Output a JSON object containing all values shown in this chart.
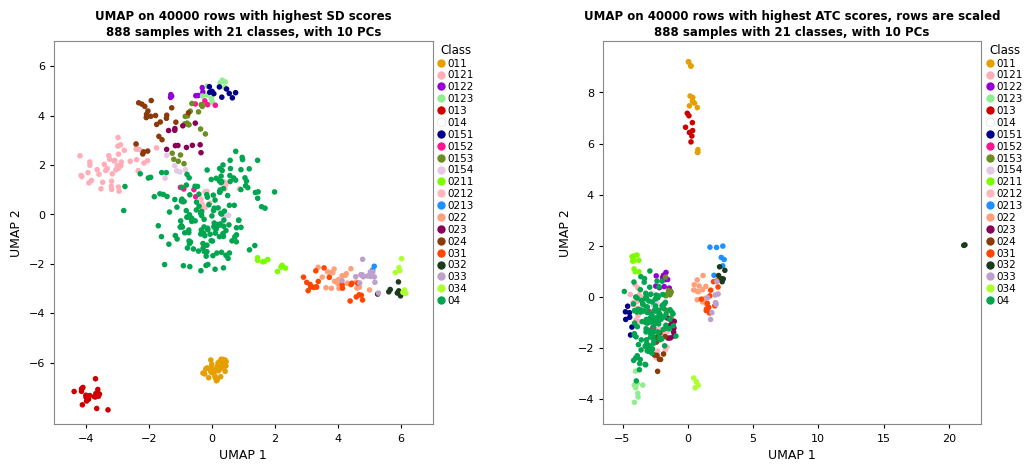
{
  "title1": "UMAP on 40000 rows with highest SD scores\n888 samples with 21 classes, with 10 PCs",
  "title2": "UMAP on 40000 rows with highest ATC scores, rows are scaled\n888 samples with 21 classes, with 10 PCs",
  "xlabel": "UMAP 1",
  "ylabel": "UMAP 2",
  "xlim1": [
    -5.0,
    7.0
  ],
  "ylim1": [
    -8.5,
    7.0
  ],
  "xlim2": [
    -6.5,
    22.5
  ],
  "ylim2": [
    -5.0,
    10.0
  ],
  "xticks1": [
    -4,
    -2,
    0,
    2,
    4,
    6
  ],
  "yticks1": [
    -6,
    -4,
    -2,
    0,
    2,
    4,
    6
  ],
  "xticks2": [
    -5,
    0,
    5,
    10,
    15,
    20
  ],
  "yticks2": [
    -4,
    -2,
    0,
    2,
    4,
    6,
    8
  ],
  "classes": [
    "011",
    "0121",
    "0122",
    "0123",
    "013",
    "014",
    "0151",
    "0152",
    "0153",
    "0154",
    "0211",
    "0212",
    "0213",
    "022",
    "023",
    "024",
    "031",
    "032",
    "033",
    "034",
    "04"
  ],
  "colors": {
    "011": "#E69F00",
    "0121": "#FFAEB9",
    "0122": "#9400D3",
    "0123": "#90EE90",
    "013": "#CC0000",
    "014": "#FFFFFF",
    "0151": "#00008B",
    "0152": "#FF1493",
    "0153": "#6B8E23",
    "0154": "#E6C8E6",
    "0211": "#7CFC00",
    "0212": "#FFB6C1",
    "0213": "#1E90FF",
    "022": "#FFA07A",
    "023": "#8B0057",
    "024": "#8B3A0A",
    "031": "#FF4500",
    "032": "#1C3B1C",
    "033": "#BDA0CB",
    "034": "#ADFF2F",
    "04": "#00A550"
  },
  "point_size": 16,
  "background_color": "#FFFFFF",
  "panel_bg": "#FFFFFF",
  "legend_markersize": 6
}
